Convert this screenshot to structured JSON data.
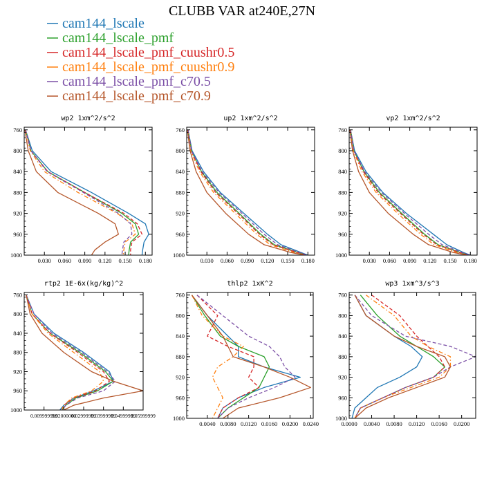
{
  "title": "CLUBB VAR at240E,27N",
  "legend": [
    {
      "label": "cam144_lscale",
      "color": "#1f77b4"
    },
    {
      "label": "cam144_lscale_pmf",
      "color": "#2ca02c"
    },
    {
      "label": "cam144_lscale_pmf_cuushr0.5",
      "color": "#d62728"
    },
    {
      "label": "cam144_lscale_pmf_cuushr0.9",
      "color": "#ff7f0e"
    },
    {
      "label": "cam144_lscale_pmf_c70.5",
      "color": "#7b4fa6"
    },
    {
      "label": "cam144_lscale_pmf_c70.9",
      "color": "#b5562a"
    }
  ],
  "chart_data": [
    {
      "type": "line",
      "title": "wp2  1xm^2/s^2",
      "xlim": [
        0,
        0.19
      ],
      "ylim": [
        1000,
        755
      ],
      "xticks": [
        0.03,
        0.06,
        0.09,
        0.12,
        0.15,
        0.18
      ],
      "xtick_labels": [
        "0.030",
        "0.060",
        "0.090",
        "0.120",
        "0.150",
        "0.180"
      ],
      "yticks": [
        760,
        800,
        840,
        880,
        920,
        960,
        1000
      ],
      "ytick_labels": [
        "760",
        "800",
        "840",
        "880",
        "920",
        "960",
        "1000"
      ],
      "y": [
        760,
        800,
        840,
        880,
        920,
        940,
        960,
        975,
        990,
        1000
      ],
      "series": [
        {
          "name": "cam144_lscale",
          "style": "solid",
          "values": [
            0.002,
            0.012,
            0.04,
            0.1,
            0.155,
            0.18,
            0.185,
            0.178,
            0.176,
            0.175
          ]
        },
        {
          "name": "cam144_lscale_pmf",
          "style": "solid",
          "values": [
            0.002,
            0.01,
            0.035,
            0.09,
            0.145,
            0.165,
            0.17,
            0.158,
            0.156,
            0.155
          ]
        },
        {
          "name": "cam144_lscale_pmf_cuushr0.5",
          "style": "dashed",
          "values": [
            0.002,
            0.01,
            0.035,
            0.09,
            0.148,
            0.168,
            0.175,
            0.16,
            0.158,
            0.158
          ]
        },
        {
          "name": "cam144_lscale_pmf_cuushr0.9",
          "style": "dashdot",
          "values": [
            0.002,
            0.009,
            0.03,
            0.08,
            0.138,
            0.16,
            0.165,
            0.15,
            0.148,
            0.147
          ]
        },
        {
          "name": "cam144_lscale_pmf_c70.5",
          "style": "dashed",
          "values": [
            0.002,
            0.01,
            0.034,
            0.088,
            0.14,
            0.158,
            0.16,
            0.148,
            0.146,
            0.145
          ]
        },
        {
          "name": "cam144_lscale_pmf_c70.9",
          "style": "solid",
          "values": [
            0.001,
            0.006,
            0.018,
            0.05,
            0.11,
            0.135,
            0.14,
            0.12,
            0.105,
            0.1
          ]
        }
      ]
    },
    {
      "type": "line",
      "title": "up2  1xm^2/s^2",
      "xlim": [
        0,
        0.19
      ],
      "ylim": [
        1000,
        755
      ],
      "xticks": [
        0.03,
        0.06,
        0.09,
        0.12,
        0.15,
        0.18
      ],
      "xtick_labels": [
        "0.030",
        "0.060",
        "0.090",
        "0.120",
        "0.150",
        "0.180"
      ],
      "yticks": [
        760,
        800,
        840,
        880,
        920,
        960,
        1000
      ],
      "ytick_labels": [
        "760",
        "800",
        "840",
        "880",
        "920",
        "960",
        "1000"
      ],
      "y": [
        760,
        800,
        840,
        880,
        920,
        960,
        980,
        995,
        1000
      ],
      "series": [
        {
          "name": "cam144_lscale",
          "style": "solid",
          "values": [
            0.002,
            0.008,
            0.025,
            0.05,
            0.085,
            0.12,
            0.14,
            0.17,
            0.18
          ]
        },
        {
          "name": "cam144_lscale_pmf",
          "style": "solid",
          "values": [
            0.002,
            0.007,
            0.022,
            0.045,
            0.078,
            0.11,
            0.13,
            0.165,
            0.178
          ]
        },
        {
          "name": "cam144_lscale_pmf_cuushr0.5",
          "style": "dashed",
          "values": [
            0.002,
            0.007,
            0.021,
            0.043,
            0.076,
            0.108,
            0.128,
            0.164,
            0.178
          ]
        },
        {
          "name": "cam144_lscale_pmf_cuushr0.9",
          "style": "dashdot",
          "values": [
            0.002,
            0.006,
            0.019,
            0.04,
            0.072,
            0.104,
            0.124,
            0.16,
            0.176
          ]
        },
        {
          "name": "cam144_lscale_pmf_c70.5",
          "style": "dashed",
          "values": [
            0.002,
            0.007,
            0.023,
            0.048,
            0.082,
            0.115,
            0.135,
            0.168,
            0.179
          ]
        },
        {
          "name": "cam144_lscale_pmf_c70.9",
          "style": "solid",
          "values": [
            0.001,
            0.005,
            0.014,
            0.03,
            0.058,
            0.092,
            0.115,
            0.155,
            0.175
          ]
        }
      ]
    },
    {
      "type": "line",
      "title": "vp2  1xm^2/s^2",
      "xlim": [
        0,
        0.19
      ],
      "ylim": [
        1000,
        755
      ],
      "xticks": [
        0.03,
        0.06,
        0.09,
        0.12,
        0.15,
        0.18
      ],
      "xtick_labels": [
        "0.030",
        "0.060",
        "0.090",
        "0.120",
        "0.150",
        "0.180"
      ],
      "yticks": [
        760,
        800,
        840,
        880,
        920,
        960,
        1000
      ],
      "ytick_labels": [
        "760",
        "800",
        "840",
        "880",
        "920",
        "960",
        "1000"
      ],
      "y": [
        760,
        800,
        840,
        880,
        920,
        960,
        980,
        995,
        1000
      ],
      "series": [
        {
          "name": "cam144_lscale",
          "style": "solid",
          "values": [
            0.002,
            0.008,
            0.025,
            0.05,
            0.085,
            0.125,
            0.145,
            0.17,
            0.18
          ]
        },
        {
          "name": "cam144_lscale_pmf",
          "style": "solid",
          "values": [
            0.002,
            0.007,
            0.022,
            0.045,
            0.078,
            0.112,
            0.132,
            0.165,
            0.178
          ]
        },
        {
          "name": "cam144_lscale_pmf_cuushr0.5",
          "style": "dashed",
          "values": [
            0.002,
            0.007,
            0.021,
            0.043,
            0.076,
            0.11,
            0.13,
            0.164,
            0.178
          ]
        },
        {
          "name": "cam144_lscale_pmf_cuushr0.9",
          "style": "dashdot",
          "values": [
            0.002,
            0.006,
            0.019,
            0.04,
            0.072,
            0.106,
            0.126,
            0.16,
            0.176
          ]
        },
        {
          "name": "cam144_lscale_pmf_c70.5",
          "style": "dashed",
          "values": [
            0.002,
            0.007,
            0.023,
            0.048,
            0.082,
            0.118,
            0.138,
            0.168,
            0.179
          ]
        },
        {
          "name": "cam144_lscale_pmf_c70.9",
          "style": "solid",
          "values": [
            0.001,
            0.005,
            0.014,
            0.03,
            0.058,
            0.095,
            0.118,
            0.155,
            0.175
          ]
        }
      ]
    },
    {
      "type": "line",
      "title": "rtp2  1E-6x(kg/kg)^2",
      "xlim": [
        0,
        0.06
      ],
      "ylim": [
        1000,
        755
      ],
      "xticks": [
        0.01,
        0.02,
        0.03,
        0.04,
        0.05,
        0.06
      ],
      "xtick_labels": [
        "0.009999999",
        "0.02000000",
        "0.02999999",
        "0.03999999",
        "0.04999999",
        "0.05999999"
      ],
      "yticks": [
        760,
        800,
        840,
        880,
        920,
        960,
        1000
      ],
      "ytick_labels": [
        "760",
        "800",
        "840",
        "880",
        "920",
        "960",
        "1000"
      ],
      "y": [
        760,
        800,
        840,
        880,
        920,
        940,
        960,
        975,
        990,
        1000
      ],
      "series": [
        {
          "name": "cam144_lscale",
          "style": "solid",
          "values": [
            0.001,
            0.005,
            0.015,
            0.03,
            0.043,
            0.045,
            0.035,
            0.025,
            0.02,
            0.018
          ]
        },
        {
          "name": "cam144_lscale_pmf",
          "style": "solid",
          "values": [
            0.001,
            0.004,
            0.013,
            0.028,
            0.041,
            0.045,
            0.037,
            0.026,
            0.021,
            0.019
          ]
        },
        {
          "name": "cam144_lscale_pmf_cuushr0.5",
          "style": "dashed",
          "values": [
            0.001,
            0.004,
            0.013,
            0.027,
            0.04,
            0.043,
            0.036,
            0.025,
            0.02,
            0.019
          ]
        },
        {
          "name": "cam144_lscale_pmf_cuushr0.9",
          "style": "dashdot",
          "values": [
            0.001,
            0.004,
            0.012,
            0.025,
            0.038,
            0.04,
            0.034,
            0.024,
            0.02,
            0.019
          ]
        },
        {
          "name": "cam144_lscale_pmf_c70.5",
          "style": "dashed",
          "values": [
            0.001,
            0.005,
            0.014,
            0.029,
            0.042,
            0.046,
            0.04,
            0.027,
            0.021,
            0.019
          ]
        },
        {
          "name": "cam144_lscale_pmf_c70.9",
          "style": "solid",
          "values": [
            0.001,
            0.003,
            0.009,
            0.02,
            0.034,
            0.045,
            0.06,
            0.04,
            0.025,
            0.02
          ]
        }
      ]
    },
    {
      "type": "line",
      "title": "thlp2  1xK^2",
      "xlim": [
        0,
        0.0245
      ],
      "ylim": [
        1000,
        755
      ],
      "xticks": [
        0.004,
        0.008,
        0.012,
        0.016,
        0.02,
        0.024
      ],
      "xtick_labels": [
        "0.0040",
        "0.0080",
        "0.0120",
        "0.0160",
        "0.0200",
        "0.0240"
      ],
      "yticks": [
        760,
        800,
        840,
        880,
        920,
        960,
        1000
      ],
      "ytick_labels": [
        "760",
        "800",
        "840",
        "880",
        "920",
        "960",
        "1000"
      ],
      "y": [
        760,
        800,
        840,
        860,
        880,
        900,
        920,
        940,
        960,
        980,
        1000
      ],
      "series": [
        {
          "name": "cam144_lscale",
          "style": "solid",
          "values": [
            0.001,
            0.004,
            0.008,
            0.01,
            0.01,
            0.015,
            0.022,
            0.015,
            0.01,
            0.007,
            0.006
          ]
        },
        {
          "name": "cam144_lscale_pmf",
          "style": "solid",
          "values": [
            0.001,
            0.0035,
            0.0065,
            0.01,
            0.015,
            0.016,
            0.015,
            0.014,
            0.011,
            0.008,
            0.006
          ]
        },
        {
          "name": "cam144_lscale_pmf_cuushr0.5",
          "style": "dashed",
          "values": [
            0.002,
            0.006,
            0.004,
            0.008,
            0.013,
            0.013,
            0.012,
            0.014,
            0.01,
            0.007,
            0.006
          ]
        },
        {
          "name": "cam144_lscale_pmf_cuushr0.9",
          "style": "dashdot",
          "values": [
            0.001,
            0.003,
            0.007,
            0.011,
            0.009,
            0.006,
            0.005,
            0.006,
            0.007,
            0.006,
            0.005
          ]
        },
        {
          "name": "cam144_lscale_pmf_c70.5",
          "style": "dashed",
          "values": [
            0.002,
            0.007,
            0.012,
            0.016,
            0.018,
            0.019,
            0.021,
            0.017,
            0.012,
            0.008,
            0.006
          ]
        },
        {
          "name": "cam144_lscale_pmf_c70.9",
          "style": "solid",
          "values": [
            0.001,
            0.004,
            0.007,
            0.008,
            0.009,
            0.015,
            0.02,
            0.024,
            0.018,
            0.01,
            0.007
          ]
        }
      ]
    },
    {
      "type": "line",
      "title": "wp3  1xm^3/s^3",
      "xlim": [
        0,
        0.0225
      ],
      "ylim": [
        1000,
        755
      ],
      "xticks": [
        0.0,
        0.004,
        0.008,
        0.012,
        0.016,
        0.02
      ],
      "xtick_labels": [
        "0.0000",
        "0.0040",
        "0.0080",
        "0.0120",
        "0.0160",
        "0.0200"
      ],
      "yticks": [
        760,
        800,
        840,
        880,
        920,
        960,
        1000
      ],
      "ytick_labels": [
        "760",
        "800",
        "840",
        "880",
        "920",
        "960",
        "1000"
      ],
      "y": [
        760,
        800,
        840,
        860,
        880,
        900,
        920,
        940,
        960,
        980,
        1000
      ],
      "series": [
        {
          "name": "cam144_lscale",
          "style": "solid",
          "values": [
            0.001,
            0.003,
            0.008,
            0.011,
            0.013,
            0.012,
            0.009,
            0.005,
            0.003,
            0.001,
            0.0005
          ]
        },
        {
          "name": "cam144_lscale_pmf",
          "style": "solid",
          "values": [
            0.002,
            0.005,
            0.009,
            0.012,
            0.015,
            0.017,
            0.015,
            0.01,
            0.006,
            0.002,
            0.001
          ]
        },
        {
          "name": "cam144_lscale_pmf_cuushr0.5",
          "style": "dashed",
          "values": [
            0.004,
            0.009,
            0.012,
            0.014,
            0.016,
            0.017,
            0.015,
            0.01,
            0.006,
            0.002,
            0.001
          ]
        },
        {
          "name": "cam144_lscale_pmf_cuushr0.9",
          "style": "dashdot",
          "values": [
            0.003,
            0.008,
            0.011,
            0.014,
            0.018,
            0.018,
            0.016,
            0.011,
            0.006,
            0.002,
            0.001
          ]
        },
        {
          "name": "cam144_lscale_pmf_c70.5",
          "style": "dashed",
          "values": [
            0.001,
            0.004,
            0.01,
            0.018,
            0.0225,
            0.018,
            0.015,
            0.01,
            0.006,
            0.002,
            0.001
          ]
        },
        {
          "name": "cam144_lscale_pmf_c70.9",
          "style": "solid",
          "values": [
            0.001,
            0.003,
            0.008,
            0.012,
            0.017,
            0.018,
            0.017,
            0.012,
            0.007,
            0.003,
            0.001
          ]
        }
      ]
    }
  ]
}
